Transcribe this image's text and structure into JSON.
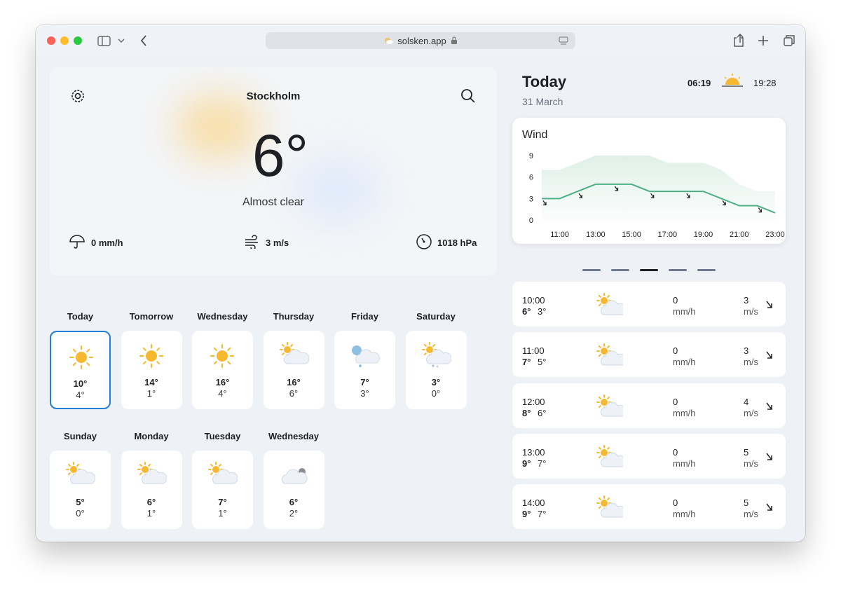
{
  "browser": {
    "url": "solsken.app"
  },
  "current": {
    "city": "Stockholm",
    "temperature": "6°",
    "condition": "Almost clear",
    "precipitation": "0 mm/h",
    "wind": "3 m/s",
    "pressure": "1018 hPa"
  },
  "days": [
    {
      "name": "Today",
      "high": "10°",
      "low": "4°",
      "icon": "sun"
    },
    {
      "name": "Tomorrow",
      "high": "14°",
      "low": "1°",
      "icon": "sun"
    },
    {
      "name": "Wednesday",
      "high": "16°",
      "low": "4°",
      "icon": "sun"
    },
    {
      "name": "Thursday",
      "high": "16°",
      "low": "6°",
      "icon": "sun-cloud"
    },
    {
      "name": "Friday",
      "high": "7°",
      "low": "3°",
      "icon": "rain"
    },
    {
      "name": "Saturday",
      "high": "3°",
      "low": "0°",
      "icon": "sleet"
    },
    {
      "name": "Sunday",
      "high": "5°",
      "low": "0°",
      "icon": "sun-cloud"
    },
    {
      "name": "Monday",
      "high": "6°",
      "low": "1°",
      "icon": "sun-cloud"
    },
    {
      "name": "Tuesday",
      "high": "7°",
      "low": "1°",
      "icon": "sun-cloud"
    },
    {
      "name": "Wednesday",
      "high": "6°",
      "low": "2°",
      "icon": "cloud"
    }
  ],
  "today": {
    "title": "Today",
    "date": "31 March",
    "sunrise": "06:19",
    "sunset": "19:28"
  },
  "wind_chart": {
    "type": "line",
    "title": "Wind",
    "x": [
      null,
      "11:00",
      null,
      "13:00",
      null,
      "15:00",
      null,
      "17:00",
      null,
      "19:00",
      null,
      "21:00",
      null,
      "23:00"
    ],
    "series": [
      {
        "color": "#dff0e8",
        "area": true,
        "values": [
          7,
          7,
          8,
          9,
          9,
          9,
          9,
          8,
          8,
          8,
          7,
          5,
          4,
          4
        ]
      },
      {
        "color": "#4caf86",
        "values": [
          3,
          3,
          4,
          5,
          5,
          5,
          4,
          4,
          4,
          4,
          3,
          2,
          2,
          1
        ]
      }
    ],
    "ylim": [
      0,
      9
    ],
    "yticks": [
      0,
      3,
      6,
      9
    ]
  },
  "hourly": [
    {
      "time": "10:00",
      "high": "6°",
      "low": "3°",
      "precipitation": "0",
      "precipitation_unit": "mm/h",
      "wind": "3",
      "wind_unit": "m/s"
    },
    {
      "time": "11:00",
      "high": "7°",
      "low": "5°",
      "precipitation": "0",
      "precipitation_unit": "mm/h",
      "wind": "3",
      "wind_unit": "m/s"
    },
    {
      "time": "12:00",
      "high": "8°",
      "low": "6°",
      "precipitation": "0",
      "precipitation_unit": "mm/h",
      "wind": "4",
      "wind_unit": "m/s"
    },
    {
      "time": "13:00",
      "high": "9°",
      "low": "7°",
      "precipitation": "0",
      "precipitation_unit": "mm/h",
      "wind": "5",
      "wind_unit": "m/s"
    },
    {
      "time": "14:00",
      "high": "9°",
      "low": "7°",
      "precipitation": "0",
      "precipitation_unit": "mm/h",
      "wind": "5",
      "wind_unit": "m/s"
    }
  ]
}
